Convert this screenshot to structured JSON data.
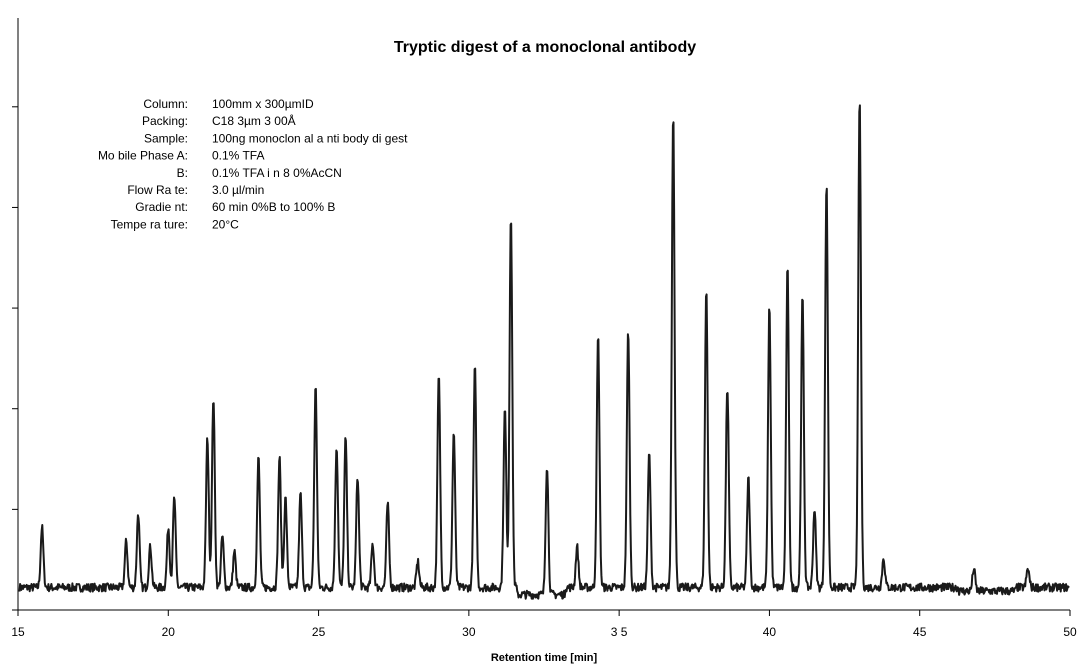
{
  "chart_data": {
    "type": "line",
    "title": "Tryptic digest of a monoclonal antibody",
    "xlabel": "Retention time [min]",
    "ylabel": "",
    "xlim": [
      15,
      50
    ],
    "ylim": [
      0,
      100
    ],
    "x_ticks": [
      15,
      20,
      25,
      30,
      35,
      40,
      45,
      50
    ],
    "x_tick_labels": [
      "15",
      "20",
      "25",
      "30",
      "3 5",
      "40",
      "45",
      "50"
    ],
    "y_ticks": [
      0,
      17,
      34,
      51,
      68,
      85
    ],
    "grid": false,
    "legend": "none",
    "line_color": "#1a1a1a",
    "info": [
      {
        "label": "Column:",
        "value": "100mm x 300µmID"
      },
      {
        "label": "Packing:",
        "value": "C18 3µm 3 00Å"
      },
      {
        "label": "Sample:",
        "value": "100ng monoclon al a nti body di gest"
      },
      {
        "label": "Mo bile Phase A:",
        "value": "0.1% TFA"
      },
      {
        "label": "B:",
        "value": "0.1% TFA i n 8 0%AcCN"
      },
      {
        "label": "Flow Ra te:",
        "value": "3.0 µl/min"
      },
      {
        "label": "Gradie nt:",
        "value": "60 min 0%B to 100% B"
      },
      {
        "label": "Tempe ra ture:",
        "value": "20°C"
      }
    ],
    "baseline": 3.8,
    "peaks": [
      {
        "x": 15.8,
        "y": 14.0
      },
      {
        "x": 18.6,
        "y": 11.6
      },
      {
        "x": 19.0,
        "y": 16.4
      },
      {
        "x": 19.4,
        "y": 10.7
      },
      {
        "x": 20.0,
        "y": 14.0
      },
      {
        "x": 20.2,
        "y": 19.0
      },
      {
        "x": 21.3,
        "y": 29.1
      },
      {
        "x": 21.5,
        "y": 36.1
      },
      {
        "x": 21.8,
        "y": 12.5
      },
      {
        "x": 22.2,
        "y": 9.9
      },
      {
        "x": 23.0,
        "y": 25.8
      },
      {
        "x": 23.7,
        "y": 25.8
      },
      {
        "x": 23.9,
        "y": 19.0
      },
      {
        "x": 24.4,
        "y": 19.7
      },
      {
        "x": 24.9,
        "y": 37.8
      },
      {
        "x": 25.6,
        "y": 27.8
      },
      {
        "x": 25.9,
        "y": 29.1
      },
      {
        "x": 26.3,
        "y": 22.7
      },
      {
        "x": 26.8,
        "y": 11.2
      },
      {
        "x": 27.3,
        "y": 18.0
      },
      {
        "x": 28.3,
        "y": 8.2
      },
      {
        "x": 29.0,
        "y": 39.7
      },
      {
        "x": 29.5,
        "y": 30.1
      },
      {
        "x": 30.2,
        "y": 41.1
      },
      {
        "x": 31.2,
        "y": 34.0
      },
      {
        "x": 31.4,
        "y": 67.3
      },
      {
        "x": 32.6,
        "y": 25.8
      },
      {
        "x": 33.6,
        "y": 10.7
      },
      {
        "x": 34.3,
        "y": 46.3
      },
      {
        "x": 35.3,
        "y": 47.3
      },
      {
        "x": 36.0,
        "y": 26.5
      },
      {
        "x": 36.8,
        "y": 84.4
      },
      {
        "x": 37.9,
        "y": 54.3
      },
      {
        "x": 38.6,
        "y": 37.8
      },
      {
        "x": 39.3,
        "y": 22.4
      },
      {
        "x": 40.0,
        "y": 51.5
      },
      {
        "x": 40.6,
        "y": 58.0
      },
      {
        "x": 41.1,
        "y": 53.2
      },
      {
        "x": 41.5,
        "y": 17.2
      },
      {
        "x": 41.9,
        "y": 72.3
      },
      {
        "x": 43.0,
        "y": 86.6
      },
      {
        "x": 43.8,
        "y": 8.8
      },
      {
        "x": 46.8,
        "y": 7.6
      },
      {
        "x": 48.6,
        "y": 7.0
      }
    ]
  }
}
